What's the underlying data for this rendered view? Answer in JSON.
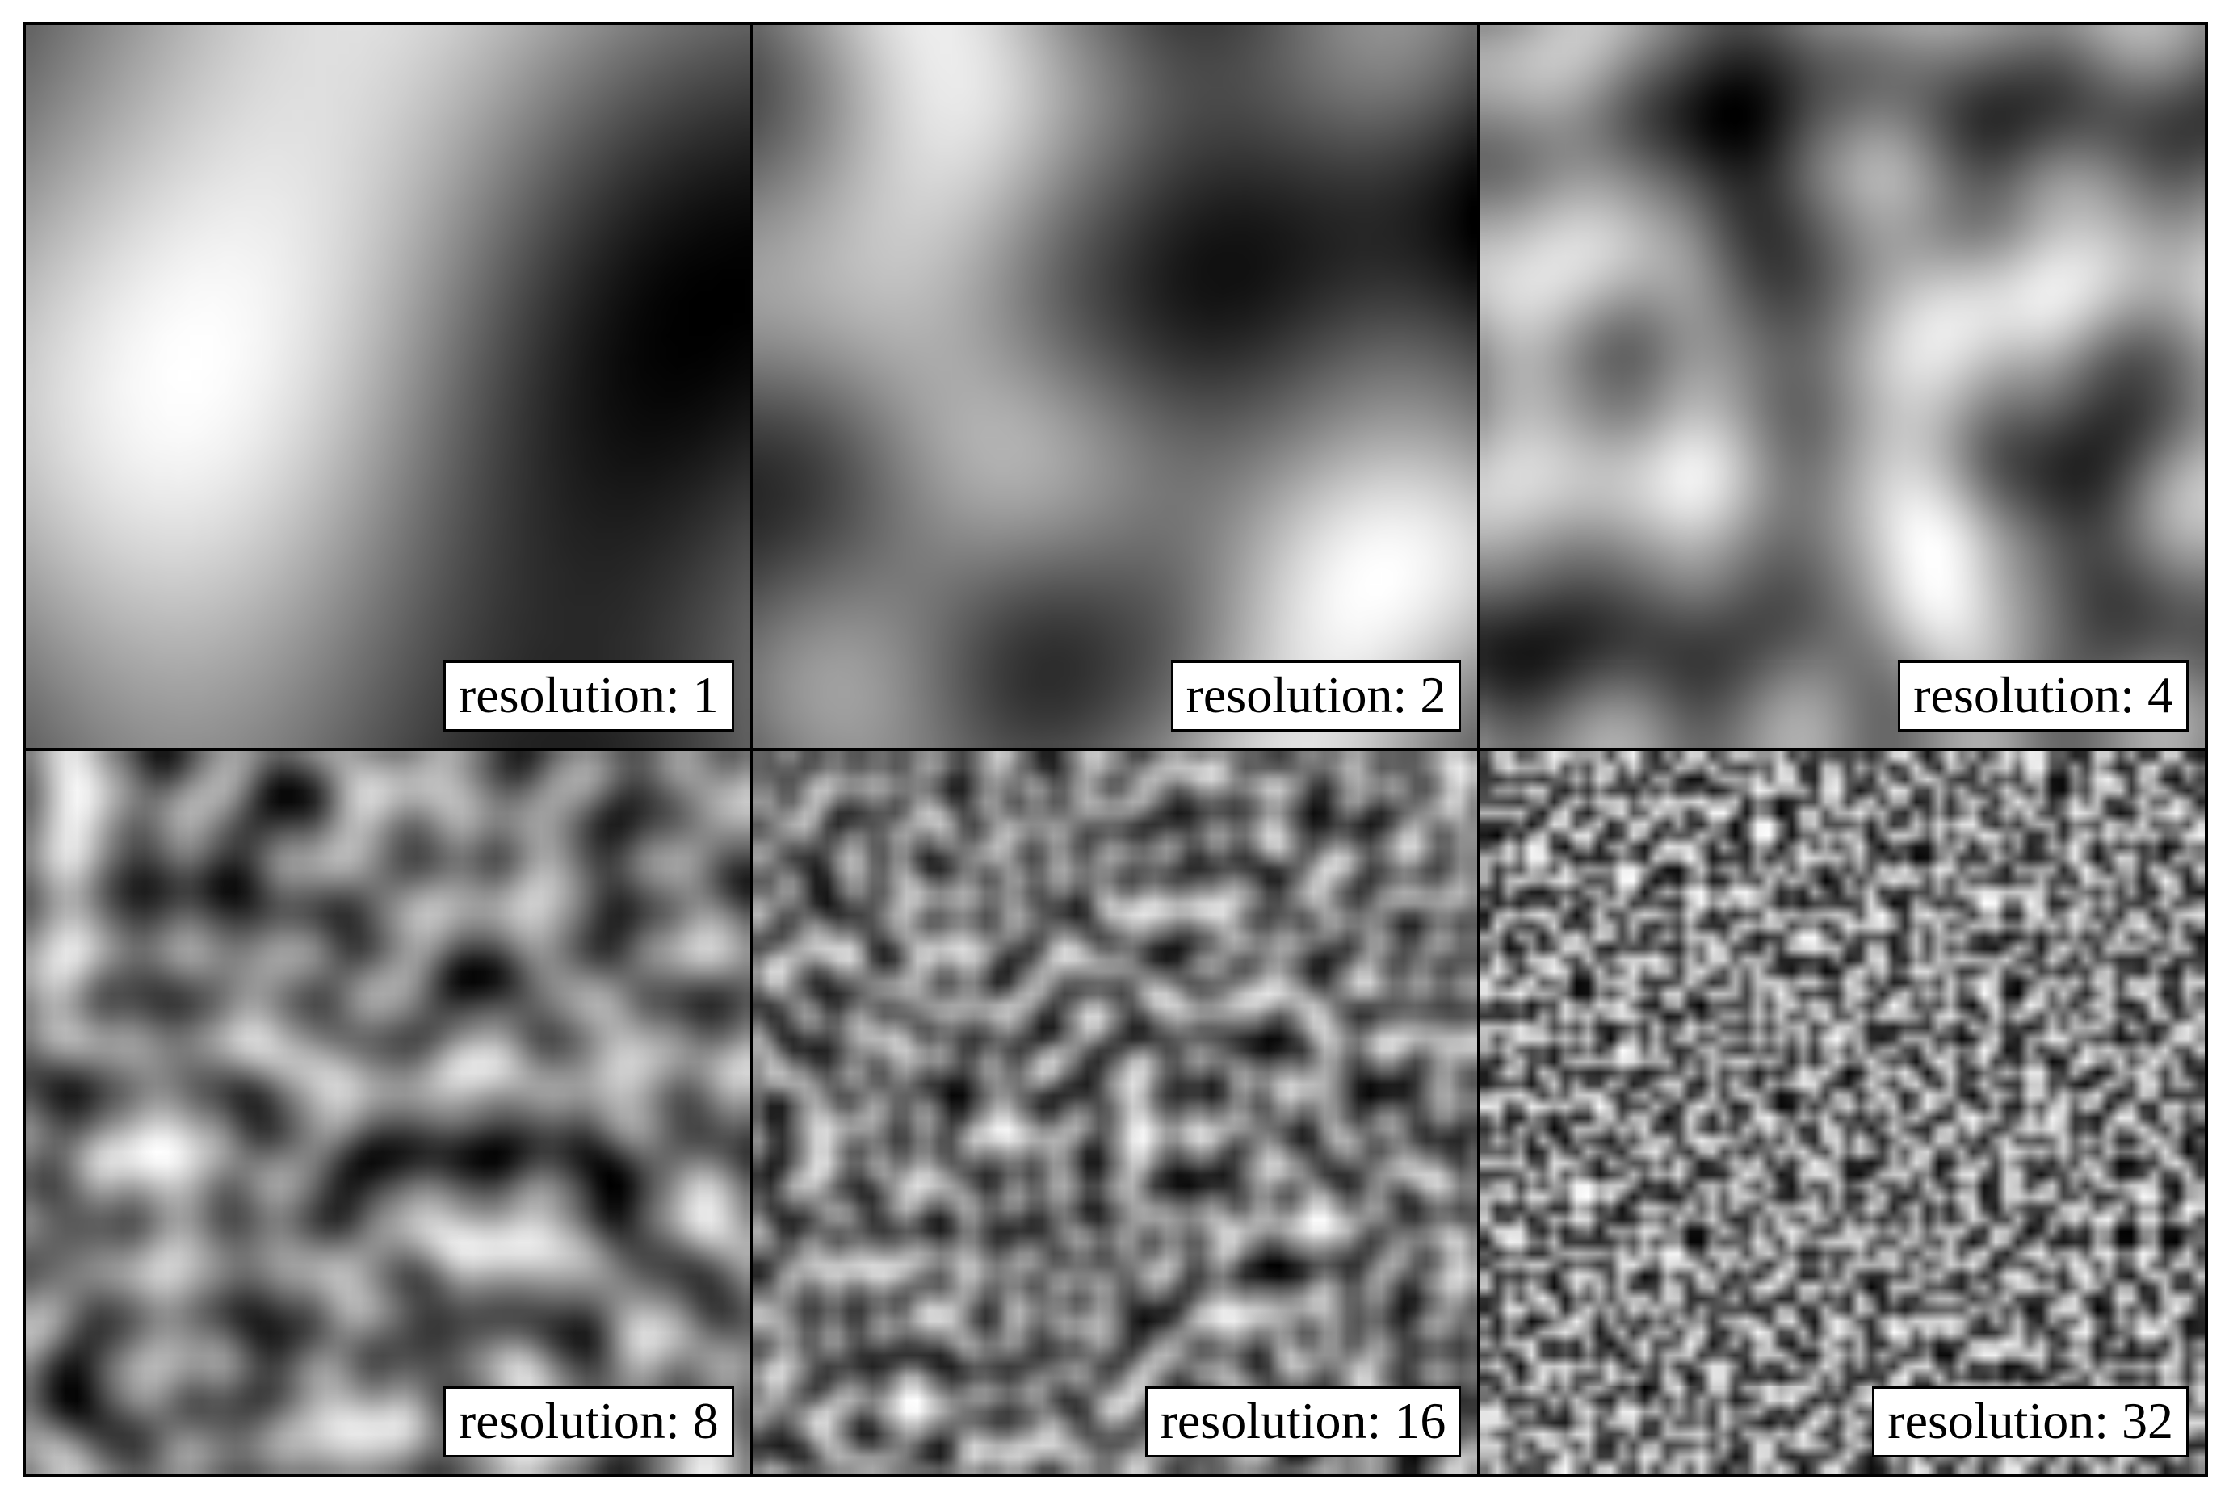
{
  "panels": [
    {
      "label": "resolution: 1",
      "resolution": 1
    },
    {
      "label": "resolution: 2",
      "resolution": 2
    },
    {
      "label": "resolution: 4",
      "resolution": 4
    },
    {
      "label": "resolution: 8",
      "resolution": 8
    },
    {
      "label": "resolution: 16",
      "resolution": 16
    },
    {
      "label": "resolution: 32",
      "resolution": 32
    }
  ],
  "colormap": "grayscale"
}
